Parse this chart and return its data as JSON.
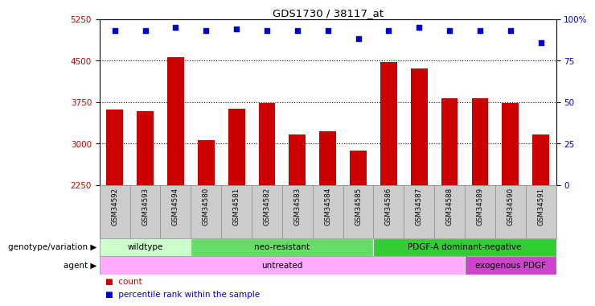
{
  "title": "GDS1730 / 38117_at",
  "samples": [
    "GSM34592",
    "GSM34593",
    "GSM34594",
    "GSM34580",
    "GSM34581",
    "GSM34582",
    "GSM34583",
    "GSM34584",
    "GSM34585",
    "GSM34586",
    "GSM34587",
    "GSM34588",
    "GSM34589",
    "GSM34590",
    "GSM34591"
  ],
  "counts": [
    3620,
    3580,
    4560,
    3060,
    3630,
    3730,
    3160,
    3230,
    2880,
    4480,
    4360,
    3820,
    3820,
    3730,
    3160
  ],
  "percentiles": [
    93,
    93,
    95,
    93,
    94,
    93,
    93,
    93,
    88,
    93,
    95,
    93,
    93,
    93,
    86
  ],
  "bar_color": "#cc0000",
  "dot_color": "#0000cc",
  "ylim_left": [
    2250,
    5250
  ],
  "ylim_right": [
    0,
    100
  ],
  "yticks_left": [
    2250,
    3000,
    3750,
    4500,
    5250
  ],
  "yticks_right": [
    0,
    25,
    50,
    75,
    100
  ],
  "grid_values": [
    3000,
    3750,
    4500
  ],
  "genotype_groups": [
    {
      "label": "wildtype",
      "start": 0,
      "end": 3,
      "color": "#ccffcc"
    },
    {
      "label": "neo-resistant",
      "start": 3,
      "end": 9,
      "color": "#66dd66"
    },
    {
      "label": "PDGF-A dominant-negative",
      "start": 9,
      "end": 15,
      "color": "#33cc33"
    }
  ],
  "agent_groups": [
    {
      "label": "untreated",
      "start": 0,
      "end": 12,
      "color": "#ffaaff"
    },
    {
      "label": "exogenous PDGF",
      "start": 12,
      "end": 15,
      "color": "#cc44cc"
    }
  ],
  "legend_items": [
    {
      "label": "count",
      "color": "#cc0000"
    },
    {
      "label": "percentile rank within the sample",
      "color": "#0000cc"
    }
  ],
  "genotype_label": "genotype/variation",
  "agent_label": "agent",
  "bar_width": 0.55,
  "dot_size": 25
}
